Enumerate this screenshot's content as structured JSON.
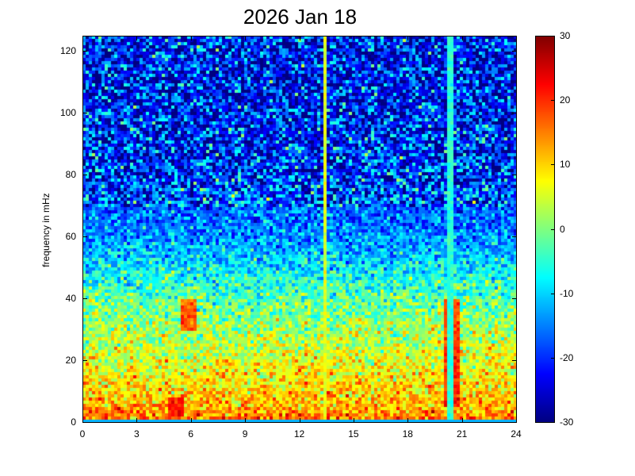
{
  "chart_data": {
    "type": "heatmap",
    "title": "2026 Jan 18",
    "xlabel": "",
    "ylabel": "frequency in mHz",
    "xlim": [
      0,
      24
    ],
    "ylim": [
      0,
      125
    ],
    "x_ticks": [
      "0",
      "3",
      "6",
      "9",
      "12",
      "15",
      "18",
      "21",
      "24"
    ],
    "y_ticks": [
      "0",
      "20",
      "40",
      "60",
      "80",
      "100",
      "120"
    ],
    "colorbar": {
      "range": [
        -30,
        30
      ],
      "ticks": [
        "30",
        "20",
        "10",
        "0",
        "-10",
        "-20",
        "-30"
      ],
      "colormap": "jet"
    },
    "grid": false,
    "features": {
      "baseline_levels": [
        {
          "freq": 0,
          "value": 18
        },
        {
          "freq": 5,
          "value": 12
        },
        {
          "freq": 20,
          "value": 6
        },
        {
          "freq": 40,
          "value": -2
        },
        {
          "freq": 60,
          "value": -14
        },
        {
          "freq": 80,
          "value": -20
        },
        {
          "freq": 110,
          "value": -22
        },
        {
          "freq": 125,
          "value": -21
        }
      ],
      "vertical_lines": [
        {
          "hour": 13.4,
          "value": 6
        },
        {
          "hour": 20.3,
          "value": -5
        }
      ],
      "hotspots": [
        {
          "hour": 20.4,
          "freq_range": [
            5,
            40
          ],
          "value": 25
        },
        {
          "hour": 5.8,
          "freq_range": [
            30,
            40
          ],
          "value": 24
        },
        {
          "hour": 5.2,
          "freq_range": [
            2,
            8
          ],
          "value": 26
        }
      ]
    }
  }
}
